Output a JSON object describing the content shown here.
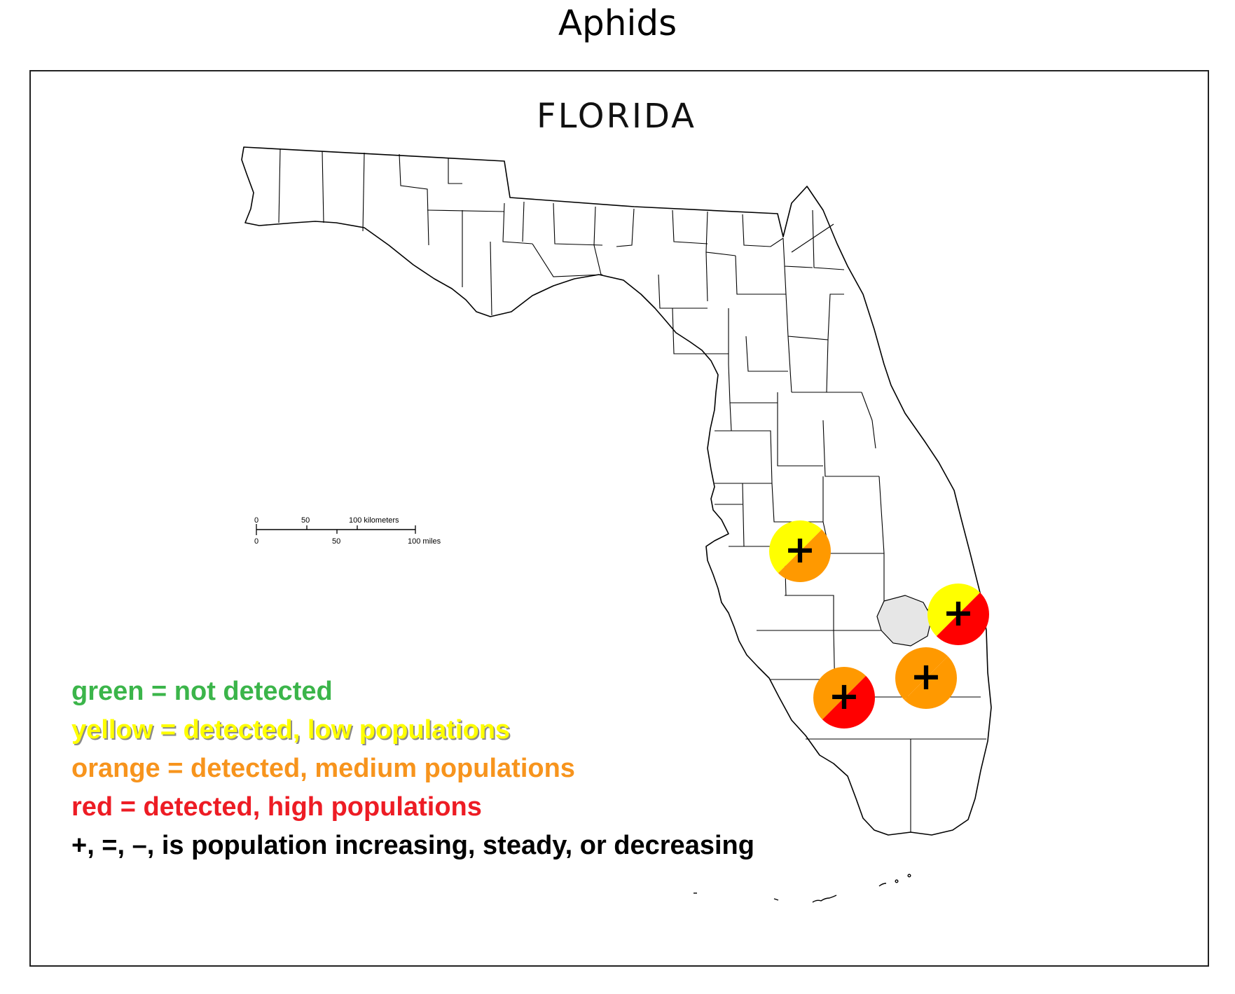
{
  "title": "Aphids",
  "map": {
    "state_label": "FLORIDA",
    "scale_bar": {
      "km_ticks": [
        "0",
        "50",
        "100 kilometers"
      ],
      "mile_ticks": [
        "0",
        "50",
        "100 miles"
      ]
    },
    "markers": [
      {
        "colors": [
          "#ffff00",
          "#ff9900"
        ],
        "trend": "+"
      },
      {
        "colors": [
          "#ffff00",
          "#ff0000"
        ],
        "trend": "+"
      },
      {
        "colors": [
          "#ff9900",
          "#ff9900"
        ],
        "trend": "+"
      },
      {
        "colors": [
          "#ff9900",
          "#ff0000"
        ],
        "trend": "+"
      }
    ]
  },
  "legend": [
    {
      "text": "green = not detected",
      "color": "#3bb54a"
    },
    {
      "text": "yellow = detected, low populations",
      "color": "#ffff00"
    },
    {
      "text": "orange = detected, medium populations",
      "color": "#f7941d"
    },
    {
      "text": "red = detected, high populations",
      "color": "#ed1c24"
    },
    {
      "text": "+, =, –, is population increasing, steady, or decreasing",
      "color": "#000000"
    }
  ]
}
